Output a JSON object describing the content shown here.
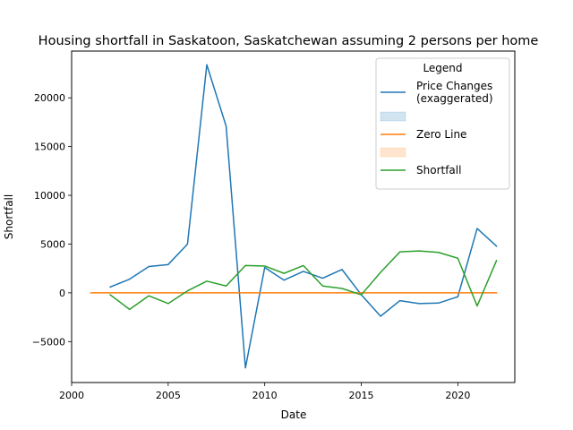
{
  "chart_data": {
    "type": "line",
    "title": "Housing shortfall in Saskatoon, Saskatchewan assuming 2 persons per home",
    "xlabel": "Date",
    "ylabel": "Shortfall",
    "xlim": [
      2000.0,
      2022.95
    ],
    "ylim": [
      -9200,
      24800
    ],
    "xticks": [
      2000,
      2005,
      2010,
      2015,
      2020
    ],
    "yticks": [
      -5000,
      0,
      5000,
      10000,
      15000,
      20000
    ],
    "grid": false,
    "legend": {
      "title": "Legend",
      "placement": "top-right",
      "entries": [
        {
          "label_lines": [
            "Price Changes",
            "(exaggerated)"
          ],
          "kind": "line",
          "color": "#1f77b4"
        },
        {
          "label_lines": [
            ""
          ],
          "kind": "patch",
          "color": "#1f77b4"
        },
        {
          "label_lines": [
            "Zero Line"
          ],
          "kind": "line",
          "color": "#ff7f0e"
        },
        {
          "label_lines": [
            ""
          ],
          "kind": "patch",
          "color": "#ff7f0e"
        },
        {
          "label_lines": [
            "Shortfall"
          ],
          "kind": "line",
          "color": "#2ca02c"
        }
      ]
    },
    "series": [
      {
        "name": "Price Changes (exaggerated)",
        "color": "#1f77b4",
        "x": [
          2002,
          2003,
          2004,
          2005,
          2006,
          2007,
          2008,
          2009,
          2010,
          2011,
          2012,
          2013,
          2014,
          2015,
          2016,
          2017,
          2018,
          2019,
          2020,
          2021,
          2022
        ],
        "values": [
          600,
          1400,
          2700,
          2900,
          5000,
          23400,
          17100,
          -7700,
          2600,
          1300,
          2200,
          1500,
          2400,
          -200,
          -2400,
          -800,
          -1100,
          -1050,
          -400,
          6600,
          4800
        ]
      },
      {
        "name": "Zero Line",
        "color": "#ff7f0e",
        "x": [
          2001,
          2022
        ],
        "values": [
          0,
          0
        ]
      },
      {
        "name": "Shortfall",
        "color": "#2ca02c",
        "x": [
          2002,
          2003,
          2004,
          2005,
          2006,
          2007,
          2008,
          2009,
          2010,
          2011,
          2012,
          2013,
          2014,
          2015,
          2016,
          2017,
          2018,
          2019,
          2020,
          2021,
          2022
        ],
        "values": [
          -200,
          -1700,
          -300,
          -1100,
          200,
          1200,
          700,
          2800,
          2750,
          2000,
          2800,
          700,
          450,
          -200,
          2100,
          4200,
          4300,
          4150,
          3550,
          -1350,
          3300
        ]
      }
    ]
  }
}
